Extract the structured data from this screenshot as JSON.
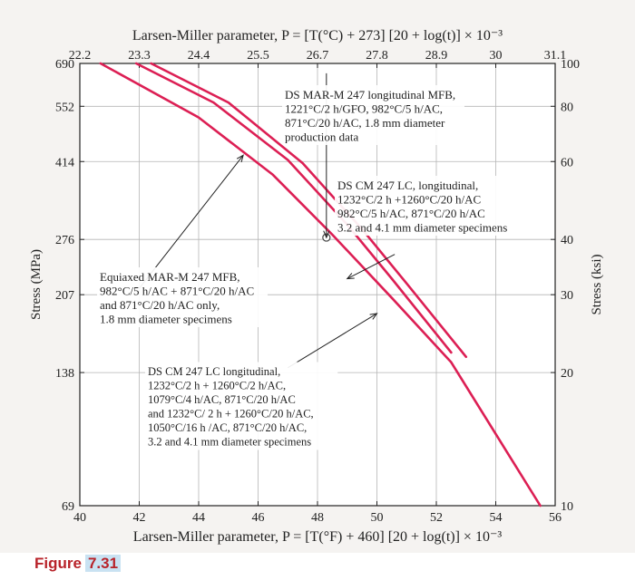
{
  "figure": {
    "label": "Figure",
    "number": "7.31"
  },
  "colors": {
    "background": "#f5f3f1",
    "curve": "#dc1f54",
    "frame": "#222222",
    "grid": "#b5b5b5"
  },
  "chart_data": {
    "type": "line",
    "title_top": "Larsen-Miller parameter, P = [T(°C) + 273] [20 + log(t)] × 10⁻³",
    "xlabel_bottom": "Larsen-Miller parameter, P = [T(°F) + 460] [20 + log(t)] × 10⁻³",
    "ylabel_left": "Stress (MPa)",
    "ylabel_right": "Stress (ksi)",
    "xlim": [
      40,
      56
    ],
    "ylim_ksi": [
      10,
      100
    ],
    "y_scale": "log",
    "grid": true,
    "x_ticks_bottom": [
      "40",
      "42",
      "44",
      "46",
      "48",
      "50",
      "52",
      "54",
      "56"
    ],
    "x_ticks_top": [
      {
        "label": "22.2",
        "at": 40
      },
      {
        "label": "23.3",
        "at": 42
      },
      {
        "label": "24.4",
        "at": 44
      },
      {
        "label": "25.5",
        "at": 46
      },
      {
        "label": "26.7",
        "at": 48
      },
      {
        "label": "27.8",
        "at": 50
      },
      {
        "label": "28.9",
        "at": 52
      },
      {
        "label": "30",
        "at": 54
      },
      {
        "label": "31.1",
        "at": 56
      }
    ],
    "y_ticks_left": [
      {
        "label": "690",
        "at": 100
      },
      {
        "label": "552",
        "at": 80
      },
      {
        "label": "414",
        "at": 60
      },
      {
        "label": "276",
        "at": 40
      },
      {
        "label": "207",
        "at": 30
      },
      {
        "label": "138",
        "at": 20
      },
      {
        "label": "69",
        "at": 10
      }
    ],
    "y_ticks_right": [
      "100",
      "80",
      "60",
      "40",
      "30",
      "20",
      "10"
    ],
    "series": [
      {
        "values": [
          [
            40.7,
            100
          ],
          [
            44.0,
            75.5
          ],
          [
            46.5,
            56
          ],
          [
            48.5,
            41
          ],
          [
            50.5,
            29.5
          ],
          [
            52.5,
            21.1
          ],
          [
            55.5,
            10
          ]
        ]
      },
      {
        "values": [
          [
            41.9,
            100
          ],
          [
            44.5,
            81.6
          ],
          [
            47.0,
            60.5
          ],
          [
            49.0,
            43.2
          ],
          [
            50.5,
            32.6
          ],
          [
            52.5,
            22.2
          ]
        ]
      },
      {
        "values": [
          [
            42.4,
            100
          ],
          [
            45.0,
            81.6
          ],
          [
            47.5,
            59.5
          ],
          [
            49.5,
            42.2
          ],
          [
            51.0,
            31.8
          ],
          [
            53.0,
            21.7
          ]
        ]
      }
    ],
    "markers": [
      {
        "x": 48.3,
        "y": 40.4,
        "shape": "open-circle"
      }
    ],
    "annotations": [
      {
        "lines": [
          "DS MAR-M 247 longitudinal MFB,",
          "1221°C/2 h/GFO, 982°C/5 h/AC,",
          "871°C/20 h/AC, 1.8 mm diameter",
          "production data"
        ],
        "anchor": [
          48.3,
          95
        ],
        "arrow_to": [
          48.3,
          40.4
        ]
      },
      {
        "lines": [
          "DS CM 247 LC, longitudinal,",
          "1232°C/2 h +1260°C/20 h/AC",
          "982°C/5 h/AC, 871°C/20 h/AC",
          "3.2 and 4.1 mm diameter specimens"
        ],
        "anchor": [
          50.6,
          37
        ],
        "arrow_to": [
          49.0,
          32.6
        ]
      },
      {
        "lines": [
          "Equiaxed MAR-M 247 MFB,",
          "982°C/5 h/AC + 871°C/20 h/AC",
          "and 871°C/20 h/AC only,",
          "1.8 mm diameter specimens"
        ],
        "anchor": [
          42.0,
          31
        ],
        "arrow_to": [
          45.5,
          62
        ]
      },
      {
        "lines": [
          "DS CM 247 LC longitudinal,",
          "1232°C/2 h + 1260°C/2 h/AC,",
          "1079°C/4 h/AC, 871°C/20 h/AC",
          "and 1232°C/ 2 h + 1260°C/20 h/AC,",
          "1050°C/16 h /AC, 871°C/20 h/AC,",
          "3.2 and 4.1 mm diameter specimens"
        ],
        "anchor": [
          47.0,
          20.5
        ],
        "arrow_to": [
          50.0,
          27.2
        ]
      }
    ]
  }
}
